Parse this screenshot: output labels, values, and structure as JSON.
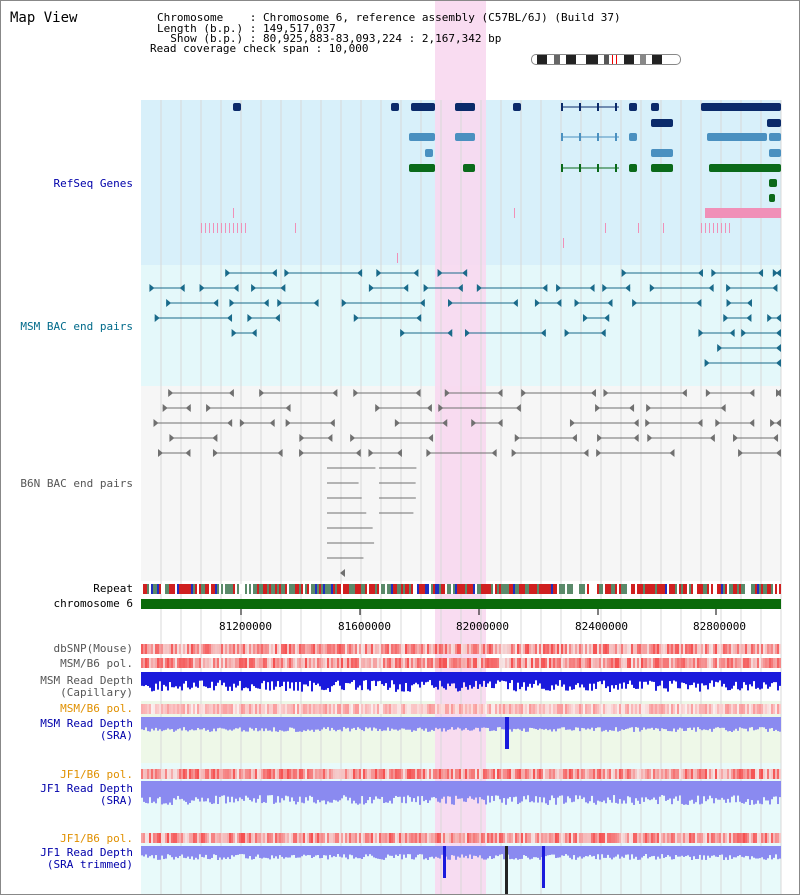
{
  "view": {
    "title": "Map View",
    "info": {
      "chromosome": "Chromosome    : Chromosome 6, reference assembly (C57BL/6J) (Build 37)",
      "length": "Length (b.p.) : 149,517,037",
      "show": "  Show (b.p.) : 80,925,883-83,093,224 : 2,167,342 bp",
      "coverage": "Read coverage check span : 10,000"
    }
  },
  "tracks": {
    "refseq": "RefSeq Genes",
    "msm_bac": "MSM BAC end pairs",
    "b6n_bac": "B6N BAC end pairs",
    "repeat": "Repeat",
    "chromosome": "chromosome 6",
    "dbsnp": "dbSNP(Mouse)",
    "msm_pol": "MSM/B6 pol.",
    "msm_depth_cap_1": "MSM Read Depth",
    "msm_depth_cap_2": "(Capillary)",
    "msm_pol2": "MSM/B6 pol.",
    "msm_depth_sra_1": "MSM Read Depth",
    "msm_depth_sra_2": "(SRA)",
    "jf1_pol": "JF1/B6 pol.",
    "jf1_depth_sra_1": "JF1 Read Depth",
    "jf1_depth_sra_2": "(SRA)",
    "jf1_pol2": "JF1/B6 pol.",
    "jf1_depth_trim_1": "JF1 Read Depth",
    "jf1_depth_trim_2": "(SRA trimmed)"
  },
  "axis": {
    "ticks": [
      "81200000",
      "81600000",
      "82000000",
      "82400000",
      "82800000"
    ]
  },
  "colors": {
    "refseq_bg": "#d8f0fa",
    "msm_bg": "#e4f8fa",
    "b6n_bg": "#f6f6f6",
    "highlight": "#f8d8f0",
    "dark_gene": "#0a2a6a",
    "mid_gene": "#4a90c0",
    "green_gene": "#0a6a1a",
    "msm_line": "#1a6a8a",
    "b6n_line": "#707070",
    "depth_blue": "#1a1adc",
    "depth_light": "#8a8af0",
    "chrom_green": "#0a6a0a",
    "label_blue": "#0000aa",
    "label_orange": "#e09000",
    "label_teal": "#006a8a"
  }
}
